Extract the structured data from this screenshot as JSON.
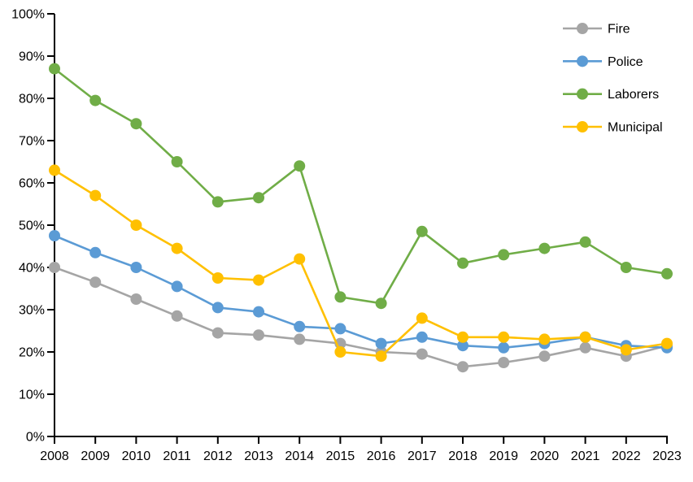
{
  "chart_data": {
    "type": "line",
    "title": "",
    "xlabel": "",
    "ylabel": "",
    "categories": [
      "2008",
      "2009",
      "2010",
      "2011",
      "2012",
      "2013",
      "2014",
      "2015",
      "2016",
      "2017",
      "2018",
      "2019",
      "2020",
      "2021",
      "2022",
      "2023"
    ],
    "series": [
      {
        "name": "Fire",
        "color": "#A5A5A5",
        "values": [
          40,
          36.5,
          32.5,
          28.5,
          24.5,
          24,
          23,
          22,
          20,
          19.5,
          16.5,
          17.5,
          19,
          21,
          19,
          21.5
        ]
      },
      {
        "name": "Police",
        "color": "#5B9BD5",
        "values": [
          47.5,
          43.5,
          40,
          35.5,
          30.5,
          29.5,
          26,
          25.5,
          22,
          23.5,
          21.5,
          21,
          22,
          23.5,
          21.5,
          21
        ]
      },
      {
        "name": "Laborers",
        "color": "#70AD47",
        "values": [
          87,
          79.5,
          74,
          65,
          55.5,
          56.5,
          64,
          33,
          31.5,
          48.5,
          41,
          43,
          44.5,
          46,
          40,
          38.5
        ]
      },
      {
        "name": "Municipal",
        "color": "#FFC000",
        "values": [
          63,
          57,
          50,
          44.5,
          37.5,
          37,
          42,
          20,
          19,
          28,
          23.5,
          23.5,
          23,
          23.5,
          20.5,
          22
        ]
      }
    ],
    "ylim": [
      0,
      100
    ],
    "y_tick_step": 10,
    "y_tick_labels": [
      "0%",
      "10%",
      "20%",
      "30%",
      "40%",
      "50%",
      "60%",
      "70%",
      "80%",
      "90%",
      "100%"
    ],
    "grid": false,
    "legend_position": "top-right",
    "legend_order": [
      "Fire",
      "Police",
      "Laborers",
      "Municipal"
    ],
    "marker": "circle",
    "axis_color": "#000000"
  }
}
